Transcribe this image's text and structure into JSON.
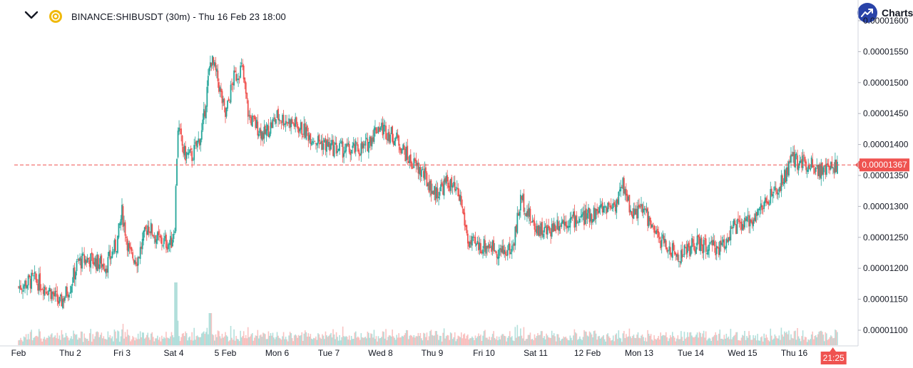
{
  "header": {
    "title": "BINANCE:SHIBUSDT (30m) - Thu 16 Feb 23 18:00"
  },
  "brand": {
    "label": "Charts"
  },
  "colors": {
    "up": "#26a69a",
    "down": "#ef5350",
    "price_line": "#ef5350",
    "accent": "#2943a8",
    "coin": "#f0b90b"
  },
  "icons": [
    "chevron-down-icon",
    "coin-icon",
    "trend-up-icon"
  ],
  "chart_data": {
    "type": "candlestick",
    "symbol": "BINANCE:SHIBUSDT",
    "interval": "30m",
    "ylim": [
      1.08e-05,
      1.61e-05
    ],
    "y_ticks": [
      "0.00001100",
      "0.00001150",
      "0.00001200",
      "0.00001250",
      "0.00001300",
      "0.00001350",
      "0.00001400",
      "0.00001450",
      "0.00001500",
      "0.00001550",
      "0.00001600"
    ],
    "x_tick_labels": [
      "Feb",
      "Thu 2",
      "Fri 3",
      "Sat 4",
      "5 Feb",
      "Mon 6",
      "Tue 7",
      "Wed 8",
      "Thu 9",
      "Fri 10",
      "Sat 11",
      "12 Feb",
      "Mon 13",
      "Tue 14",
      "Wed 15",
      "Thu 16"
    ],
    "close_anchors": [
      [
        0,
        1.17e-05
      ],
      [
        0.3,
        1.182e-05
      ],
      [
        0.6,
        1.165e-05
      ],
      [
        0.8,
        1.142e-05
      ],
      [
        1.0,
        1.172e-05
      ],
      [
        1.15,
        1.21e-05
      ],
      [
        1.35,
        1.215e-05
      ],
      [
        1.7,
        1.205e-05
      ],
      [
        1.9,
        1.24e-05
      ],
      [
        2.0,
        1.29e-05
      ],
      [
        2.15,
        1.222e-05
      ],
      [
        2.3,
        1.215e-05
      ],
      [
        2.5,
        1.27e-05
      ],
      [
        2.7,
        1.245e-05
      ],
      [
        2.95,
        1.24e-05
      ],
      [
        3.02,
        1.27e-05
      ],
      [
        3.08,
        1.43e-05
      ],
      [
        3.2,
        1.385e-05
      ],
      [
        3.35,
        1.38e-05
      ],
      [
        3.55,
        1.42e-05
      ],
      [
        3.72,
        1.54e-05
      ],
      [
        3.85,
        1.505e-05
      ],
      [
        4.0,
        1.445e-05
      ],
      [
        4.15,
        1.505e-05
      ],
      [
        4.32,
        1.525e-05
      ],
      [
        4.45,
        1.445e-05
      ],
      [
        4.75,
        1.415e-05
      ],
      [
        5.0,
        1.445e-05
      ],
      [
        5.3,
        1.435e-05
      ],
      [
        5.55,
        1.42e-05
      ],
      [
        5.8,
        1.405e-05
      ],
      [
        6.05,
        1.395e-05
      ],
      [
        6.4,
        1.39e-05
      ],
      [
        6.7,
        1.395e-05
      ],
      [
        6.95,
        1.43e-05
      ],
      [
        7.15,
        1.42e-05
      ],
      [
        7.35,
        1.405e-05
      ],
      [
        7.55,
        1.375e-05
      ],
      [
        7.8,
        1.355e-05
      ],
      [
        8.05,
        1.32e-05
      ],
      [
        8.3,
        1.34e-05
      ],
      [
        8.55,
        1.31e-05
      ],
      [
        8.7,
        1.24e-05
      ],
      [
        8.9,
        1.235e-05
      ],
      [
        9.1,
        1.238e-05
      ],
      [
        9.35,
        1.225e-05
      ],
      [
        9.55,
        1.232e-05
      ],
      [
        9.72,
        1.315e-05
      ],
      [
        9.95,
        1.27e-05
      ],
      [
        10.2,
        1.258e-05
      ],
      [
        10.45,
        1.275e-05
      ],
      [
        10.7,
        1.278e-05
      ],
      [
        10.95,
        1.282e-05
      ],
      [
        11.15,
        1.29e-05
      ],
      [
        11.35,
        1.3e-05
      ],
      [
        11.55,
        1.305e-05
      ],
      [
        11.7,
        1.335e-05
      ],
      [
        11.85,
        1.29e-05
      ],
      [
        12.1,
        1.295e-05
      ],
      [
        12.3,
        1.255e-05
      ],
      [
        12.55,
        1.235e-05
      ],
      [
        12.75,
        1.218e-05
      ],
      [
        12.95,
        1.232e-05
      ],
      [
        13.15,
        1.24e-05
      ],
      [
        13.35,
        1.232e-05
      ],
      [
        13.6,
        1.235e-05
      ],
      [
        13.8,
        1.265e-05
      ],
      [
        14.05,
        1.27e-05
      ],
      [
        14.3,
        1.292e-05
      ],
      [
        14.55,
        1.315e-05
      ],
      [
        14.7,
        1.328e-05
      ],
      [
        14.85,
        1.355e-05
      ],
      [
        14.95,
        1.375e-05
      ],
      [
        15.15,
        1.372e-05
      ],
      [
        15.35,
        1.37e-05
      ],
      [
        15.55,
        1.355e-05
      ],
      [
        15.75,
        1.365e-05
      ],
      [
        15.83,
        1.367e-05
      ]
    ],
    "current_price": "0.00001367",
    "current_time": "21:25"
  }
}
